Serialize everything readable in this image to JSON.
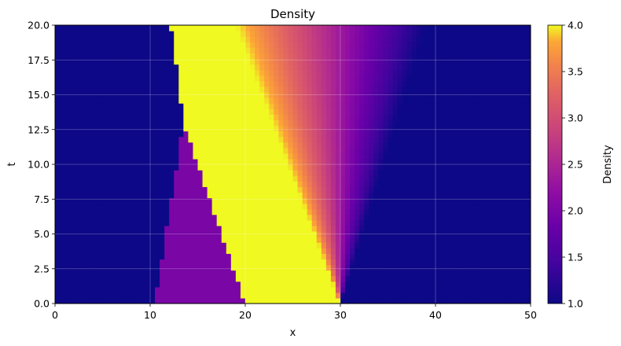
{
  "chart_data": {
    "type": "heatmap",
    "title": "Density",
    "xlabel": "x",
    "ylabel": "t",
    "xlim": [
      0,
      50
    ],
    "ylim": [
      0,
      20
    ],
    "xticks": [
      0,
      10,
      20,
      30,
      40,
      50
    ],
    "yticks": [
      0.0,
      2.5,
      5.0,
      7.5,
      10.0,
      12.5,
      15.0,
      17.5,
      20.0
    ],
    "xtick_labels": [
      "0",
      "10",
      "20",
      "30",
      "40",
      "50"
    ],
    "ytick_labels": [
      "0.0",
      "2.5",
      "5.0",
      "7.5",
      "10.0",
      "12.5",
      "15.0",
      "17.5",
      "20.0"
    ],
    "grid": true,
    "colormap": "plasma",
    "colorbar": {
      "label": "Density",
      "range": [
        1.0,
        4.0
      ],
      "ticks": [
        1.0,
        1.5,
        2.0,
        2.5,
        3.0,
        3.5,
        4.0
      ],
      "tick_labels": [
        "1.0",
        "1.5",
        "2.0",
        "2.5",
        "3.0",
        "3.5",
        "4.0"
      ]
    },
    "regions": [
      {
        "name": "ambient-left",
        "density": 1.0
      },
      {
        "name": "left-state",
        "density": 2.0,
        "x_range_at_t0": [
          10.5,
          20
        ],
        "collapses_at_t": 13.0
      },
      {
        "name": "dense-state",
        "density": 4.0,
        "x_range_at_t0": [
          20,
          30
        ]
      },
      {
        "name": "rarefaction-fan",
        "density_range": [
          4.0,
          1.0
        ],
        "head_x_at_t20": 19,
        "tail_x_at_t20": 39
      },
      {
        "name": "ambient-right",
        "density": 1.0
      }
    ],
    "boundaries": [
      {
        "name": "left-contact",
        "points": [
          [
            10.5,
            0
          ],
          [
            13.5,
            13
          ],
          [
            12.2,
            20
          ]
        ]
      },
      {
        "name": "shock",
        "points": [
          [
            20,
            0
          ],
          [
            13.5,
            13
          ]
        ]
      },
      {
        "name": "fan-tail",
        "points": [
          [
            30,
            0
          ],
          [
            39,
            20
          ]
        ]
      }
    ]
  }
}
